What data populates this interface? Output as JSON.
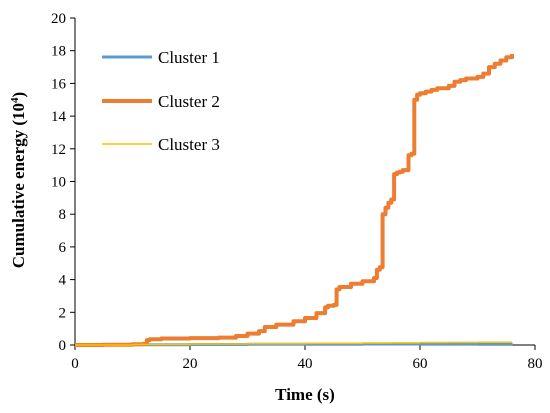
{
  "chart_data": {
    "type": "line",
    "title": "",
    "xlabel": "Time (s)",
    "ylabel_base": "Cumulative energy (10",
    "ylabel_exp": "4",
    "ylabel_close": ")",
    "xlim": [
      0,
      80
    ],
    "ylim": [
      0,
      20
    ],
    "xticks": [
      0,
      20,
      40,
      60,
      80
    ],
    "yticks": [
      0,
      2,
      4,
      6,
      8,
      10,
      12,
      14,
      16,
      18,
      20
    ],
    "grid": false,
    "legend_position": "top-left",
    "series": [
      {
        "name": "Cluster 1",
        "color": "#5b9bd5",
        "x": [
          0,
          10,
          20,
          30,
          40,
          50,
          60,
          70,
          76
        ],
        "y": [
          0,
          0.02,
          0.03,
          0.04,
          0.05,
          0.06,
          0.07,
          0.08,
          0.09
        ]
      },
      {
        "name": "Cluster 2",
        "color": "#ed7d31",
        "x": [
          0,
          5,
          10,
          12,
          12.5,
          13,
          15,
          20,
          25,
          28,
          30,
          32,
          33,
          35,
          38,
          40,
          42,
          43.5,
          44,
          45,
          45.5,
          46,
          48,
          50,
          52,
          52.5,
          53,
          53.5,
          54,
          54.5,
          55,
          55.5,
          56,
          56.5,
          57,
          58,
          58.5,
          59,
          59.5,
          60,
          61,
          62,
          63,
          65,
          66,
          67,
          68,
          70,
          71,
          72,
          73,
          74,
          75,
          76
        ],
        "y": [
          0,
          0.02,
          0.05,
          0.08,
          0.3,
          0.35,
          0.4,
          0.42,
          0.45,
          0.55,
          0.7,
          0.85,
          1.1,
          1.25,
          1.45,
          1.65,
          1.95,
          2.3,
          2.4,
          2.45,
          3.4,
          3.55,
          3.75,
          3.9,
          4.1,
          4.6,
          4.75,
          8.0,
          8.4,
          8.7,
          8.9,
          10.45,
          10.55,
          10.6,
          10.7,
          11.6,
          11.7,
          15.0,
          15.3,
          15.4,
          15.5,
          15.6,
          15.7,
          15.85,
          16.1,
          16.2,
          16.3,
          16.4,
          16.6,
          17.0,
          17.2,
          17.4,
          17.6,
          17.8
        ]
      },
      {
        "name": "Cluster 3",
        "color": "#ffc000",
        "x": [
          0,
          10,
          20,
          30,
          40,
          50,
          55,
          60,
          65,
          70,
          76
        ],
        "y": [
          0,
          0.03,
          0.06,
          0.08,
          0.1,
          0.12,
          0.13,
          0.15,
          0.16,
          0.17,
          0.18
        ]
      }
    ]
  }
}
